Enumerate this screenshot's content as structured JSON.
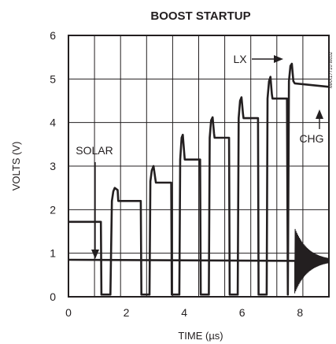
{
  "chart_data": {
    "type": "line",
    "title": "BOOST STARTUP",
    "xlabel": "TIME (µs)",
    "ylabel": "VOLTS (V)",
    "xlim": [
      0,
      9
    ],
    "ylim": [
      0,
      6
    ],
    "grid": true,
    "x_ticks": [
      "0",
      "2",
      "4",
      "6",
      "8"
    ],
    "y_ticks": [
      "0",
      "1",
      "2",
      "3",
      "4",
      "5",
      "6"
    ],
    "annotations": [
      "LX",
      "SOLAR",
      "CHG"
    ],
    "watermark": "MAX17710 toc02",
    "series": [
      {
        "name": "LX",
        "points": [
          [
            0,
            1.72
          ],
          [
            1.12,
            1.72
          ],
          [
            1.14,
            0.05
          ],
          [
            1.45,
            0.05
          ],
          [
            1.5,
            2.2
          ],
          [
            1.55,
            2.42
          ],
          [
            1.6,
            2.5
          ],
          [
            1.7,
            2.45
          ],
          [
            1.72,
            2.2
          ],
          [
            2.5,
            2.2
          ],
          [
            2.52,
            0.05
          ],
          [
            2.8,
            0.05
          ],
          [
            2.83,
            2.65
          ],
          [
            2.88,
            2.9
          ],
          [
            2.94,
            3.0
          ],
          [
            3.0,
            2.72
          ],
          [
            3.02,
            2.62
          ],
          [
            3.55,
            2.62
          ],
          [
            3.57,
            0.05
          ],
          [
            3.83,
            0.05
          ],
          [
            3.86,
            3.15
          ],
          [
            3.91,
            3.65
          ],
          [
            3.95,
            3.72
          ],
          [
            4.0,
            3.3
          ],
          [
            4.02,
            3.15
          ],
          [
            4.55,
            3.15
          ],
          [
            4.57,
            0.05
          ],
          [
            4.85,
            0.05
          ],
          [
            4.88,
            3.65
          ],
          [
            4.93,
            4.05
          ],
          [
            4.98,
            4.12
          ],
          [
            5.03,
            3.75
          ],
          [
            5.05,
            3.65
          ],
          [
            5.55,
            3.65
          ],
          [
            5.57,
            0.05
          ],
          [
            5.85,
            0.05
          ],
          [
            5.88,
            4.1
          ],
          [
            5.93,
            4.5
          ],
          [
            5.98,
            4.58
          ],
          [
            6.03,
            4.2
          ],
          [
            6.05,
            4.1
          ],
          [
            6.55,
            4.1
          ],
          [
            6.57,
            0.05
          ],
          [
            6.85,
            0.05
          ],
          [
            6.88,
            4.55
          ],
          [
            6.93,
            4.95
          ],
          [
            6.98,
            5.05
          ],
          [
            7.03,
            4.65
          ],
          [
            7.05,
            4.55
          ],
          [
            7.55,
            4.55
          ],
          [
            7.58,
            0.05
          ],
          [
            7.62,
            4.95
          ],
          [
            7.67,
            5.3
          ],
          [
            7.72,
            5.35
          ],
          [
            7.77,
            4.95
          ],
          [
            7.82,
            4.9
          ],
          [
            9,
            4.82
          ]
        ]
      },
      {
        "name": "SOLAR",
        "points": [
          [
            0,
            0.85
          ],
          [
            9,
            0.82
          ]
        ]
      }
    ]
  }
}
